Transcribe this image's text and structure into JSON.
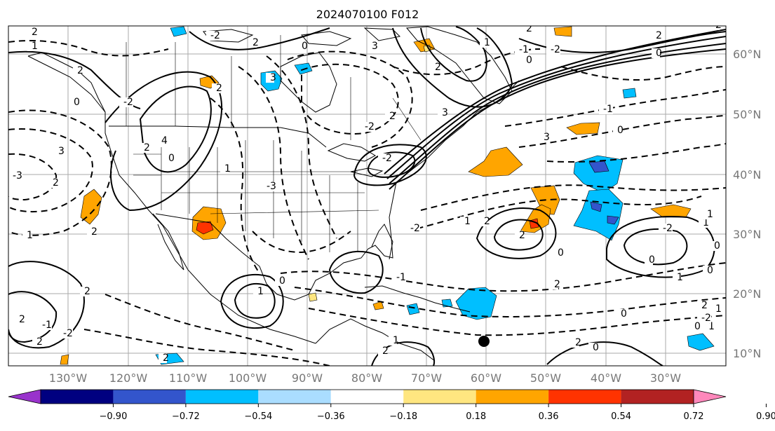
{
  "title": "2024070100 F012",
  "lon_labels": [
    "130°W",
    "120°W",
    "110°W",
    "100°W",
    "90°W",
    "80°W",
    "70°W",
    "60°W",
    "50°W",
    "40°W",
    "30°W"
  ],
  "lat_labels": [
    "60°N",
    "50°N",
    "40°N",
    "30°N",
    "20°N",
    "10°N"
  ],
  "colorbar": {
    "ticks": [
      "−0.90",
      "−0.72",
      "−0.54",
      "−0.36",
      "−0.18",
      "0.18",
      "0.36",
      "0.54",
      "0.72",
      "0.90"
    ],
    "colors": [
      "#9933cc",
      "#000080",
      "#3355cc",
      "#00bfff",
      "#aaddff",
      "#ffffff",
      "#ffe680",
      "#ffa500",
      "#ff3300",
      "#b22222",
      "#ff88bb"
    ]
  },
  "contour_labels": [
    "2",
    "1",
    "2",
    "0",
    "3",
    "2",
    "1",
    "2",
    "-2",
    "2",
    "0",
    "4",
    "2",
    "1",
    "-3",
    "-2",
    "2",
    "0",
    "3",
    "1",
    "2",
    "2",
    "-1",
    "2",
    "0",
    "-2",
    "-1",
    "3",
    "2",
    "3",
    "-2",
    "2",
    "2",
    "0",
    "0",
    "1",
    "1",
    "2",
    "0",
    "2",
    "0",
    "1",
    "2",
    "0",
    "-2",
    "1",
    "2",
    "-3",
    "2",
    "0",
    "1",
    "-2",
    "1",
    "0",
    "-2",
    "2",
    "3",
    "2",
    "2",
    "-2",
    "-1",
    "2",
    "-2",
    "0",
    "1",
    "0",
    "0",
    "-1",
    "1"
  ],
  "marker": "hurricane-marker"
}
